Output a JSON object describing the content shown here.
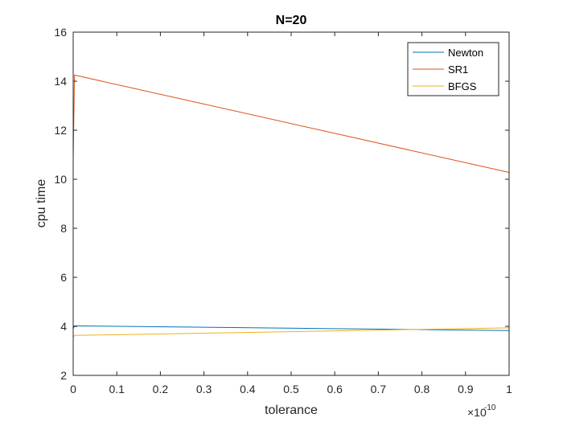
{
  "chart_data": {
    "type": "line",
    "title": "N=20",
    "xlabel": "tolerance",
    "ylabel": "cpu time",
    "x_exponent_base": "×10",
    "x_exponent_power": "-10",
    "xlim": [
      0,
      1
    ],
    "ylim": [
      2,
      16
    ],
    "xticks": [
      0,
      0.1,
      0.2,
      0.3,
      0.4,
      0.5,
      0.6,
      0.7,
      0.8,
      0.9,
      1
    ],
    "xtick_labels": [
      "0",
      "0.1",
      "0.2",
      "0.3",
      "0.4",
      "0.5",
      "0.6",
      "0.7",
      "0.8",
      "0.9",
      "1"
    ],
    "yticks": [
      2,
      4,
      6,
      8,
      10,
      12,
      14,
      16
    ],
    "ytick_labels": [
      "2",
      "4",
      "6",
      "8",
      "10",
      "12",
      "14",
      "16"
    ],
    "legend_position": "top-right",
    "series": [
      {
        "name": "Newton",
        "color": "#0072BD",
        "x": [
          0,
          0.003,
          1
        ],
        "y": [
          3.9,
          4.02,
          3.83
        ]
      },
      {
        "name": "SR1",
        "color": "#D95319",
        "x": [
          0,
          0.003,
          1
        ],
        "y": [
          10.8,
          14.25,
          10.28
        ]
      },
      {
        "name": "BFGS",
        "color": "#EDB120",
        "x": [
          0,
          0.003,
          1
        ],
        "y": [
          3.55,
          3.63,
          3.94
        ]
      }
    ]
  }
}
